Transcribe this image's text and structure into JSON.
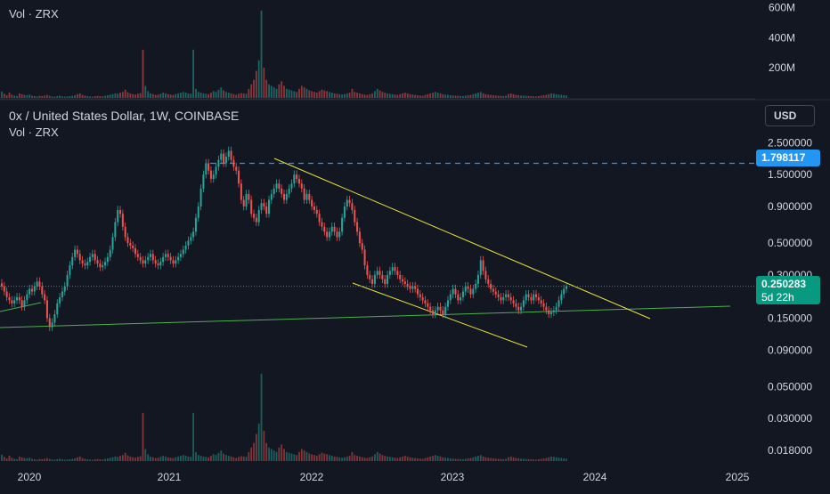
{
  "header": {
    "top_volume_label": "Vol · ZRX",
    "symbol_title": "0x / United States Dollar, 1W, COINBASE",
    "volume_label": "Vol · ZRX",
    "currency": "USD"
  },
  "price_tags": {
    "alert": {
      "value": "1.798117",
      "color": "#2196f3"
    },
    "last": {
      "value": "0.250283",
      "countdown": "5d 22h",
      "color": "#089981"
    }
  },
  "chart_data": [
    {
      "type": "bar",
      "title": "Vol · ZRX",
      "y_ticks": [
        "600M",
        "400M",
        "200M"
      ],
      "ylim": [
        0,
        650000000
      ],
      "note_values": "weekly volume bars, values estimated from pixel heights",
      "volume": [
        42,
        28,
        18,
        35,
        22,
        15,
        12,
        30,
        25,
        20,
        18,
        22,
        15,
        12,
        10,
        14,
        12,
        16,
        20,
        14,
        10,
        8,
        12,
        15,
        11,
        9,
        10,
        12,
        14,
        18,
        25,
        30,
        20,
        15,
        12,
        10,
        8,
        12,
        14,
        12,
        10,
        15,
        18,
        22,
        25,
        30,
        28,
        35,
        40,
        55,
        38,
        30,
        25,
        22,
        28,
        32,
        320,
        80,
        45,
        30,
        25,
        20,
        22,
        28,
        35,
        30,
        25,
        22,
        20,
        25,
        30,
        35,
        40,
        35,
        30,
        28,
        320,
        60,
        40,
        35,
        30,
        28,
        25,
        35,
        45,
        40,
        55,
        70,
        50,
        40,
        35,
        30,
        25,
        20,
        28,
        32,
        30,
        28,
        60,
        90,
        120,
        180,
        250,
        580,
        200,
        120,
        90,
        80,
        70,
        60,
        90,
        110,
        80,
        60,
        55,
        50,
        45,
        40,
        60,
        80,
        70,
        60,
        50,
        45,
        40,
        35,
        45,
        55,
        50,
        45,
        40,
        35,
        30,
        28,
        25,
        22,
        25,
        30,
        35,
        60,
        40,
        35,
        30,
        25,
        22,
        20,
        25,
        30,
        45,
        60,
        50,
        40,
        35,
        30,
        28,
        25,
        22,
        20,
        25,
        30,
        35,
        30,
        25,
        22,
        20,
        18,
        16,
        15,
        20,
        25,
        30,
        35,
        40,
        35,
        30,
        25,
        22,
        20,
        18,
        16,
        15,
        14,
        13,
        12,
        15,
        18,
        20,
        25,
        30,
        35,
        40,
        30,
        25,
        22,
        20,
        18,
        16,
        15,
        14,
        13,
        15,
        25,
        30,
        25,
        20,
        18,
        16,
        15,
        14,
        13,
        12,
        11,
        10,
        12,
        15,
        18,
        20,
        25,
        30,
        28,
        25,
        22,
        20,
        18,
        16,
        15,
        14,
        13,
        12,
        11,
        10,
        12,
        14,
        16,
        18,
        20,
        22,
        25
      ]
    },
    {
      "type": "candlestick",
      "title": "0x / United States Dollar, 1W, COINBASE",
      "scale": "log",
      "x_ticks": [
        "2020",
        "2021",
        "2022",
        "2023",
        "2024",
        "2025"
      ],
      "y_ticks": [
        "2.500000",
        "1.500000",
        "0.900000",
        "0.500000",
        "0.300000",
        "0.150000",
        "0.090000",
        "0.050000",
        "0.030000",
        "0.018000"
      ],
      "ylim": [
        0.016,
        3.2
      ],
      "last_price": 0.250283,
      "alert_level": 1.798117,
      "note_values": "weekly closes estimated from the chart",
      "closes": [
        0.25,
        0.23,
        0.21,
        0.2,
        0.19,
        0.2,
        0.21,
        0.2,
        0.18,
        0.2,
        0.22,
        0.24,
        0.23,
        0.25,
        0.27,
        0.25,
        0.22,
        0.2,
        0.15,
        0.13,
        0.14,
        0.16,
        0.19,
        0.21,
        0.23,
        0.25,
        0.3,
        0.35,
        0.4,
        0.45,
        0.42,
        0.38,
        0.36,
        0.35,
        0.37,
        0.4,
        0.42,
        0.38,
        0.36,
        0.34,
        0.35,
        0.37,
        0.4,
        0.45,
        0.55,
        0.7,
        0.85,
        0.8,
        0.65,
        0.55,
        0.5,
        0.48,
        0.46,
        0.42,
        0.4,
        0.38,
        0.36,
        0.38,
        0.4,
        0.42,
        0.38,
        0.36,
        0.35,
        0.37,
        0.4,
        0.42,
        0.4,
        0.38,
        0.36,
        0.38,
        0.4,
        0.42,
        0.45,
        0.48,
        0.52,
        0.55,
        0.6,
        0.75,
        0.9,
        1.2,
        1.5,
        1.8,
        1.6,
        1.4,
        1.5,
        1.7,
        1.9,
        2.1,
        1.8,
        2.0,
        2.2,
        1.9,
        1.7,
        1.6,
        1.3,
        1.0,
        0.9,
        1.1,
        1.0,
        0.8,
        0.75,
        0.7,
        0.85,
        0.95,
        0.9,
        0.8,
        1.0,
        1.1,
        1.2,
        1.3,
        1.2,
        1.1,
        1.0,
        1.1,
        1.2,
        1.3,
        1.5,
        1.4,
        1.3,
        1.2,
        1.0,
        1.1,
        1.0,
        0.9,
        0.85,
        0.8,
        0.7,
        0.65,
        0.6,
        0.55,
        0.6,
        0.65,
        0.6,
        0.55,
        0.6,
        0.75,
        0.9,
        1.0,
        0.95,
        0.85,
        0.7,
        0.6,
        0.5,
        0.45,
        0.35,
        0.3,
        0.28,
        0.26,
        0.3,
        0.32,
        0.3,
        0.28,
        0.26,
        0.3,
        0.32,
        0.34,
        0.32,
        0.3,
        0.28,
        0.27,
        0.26,
        0.25,
        0.24,
        0.25,
        0.24,
        0.22,
        0.21,
        0.2,
        0.19,
        0.18,
        0.17,
        0.16,
        0.17,
        0.18,
        0.17,
        0.16,
        0.18,
        0.2,
        0.22,
        0.24,
        0.22,
        0.2,
        0.21,
        0.23,
        0.25,
        0.24,
        0.22,
        0.24,
        0.26,
        0.3,
        0.38,
        0.32,
        0.28,
        0.26,
        0.24,
        0.23,
        0.22,
        0.21,
        0.2,
        0.21,
        0.22,
        0.21,
        0.2,
        0.19,
        0.18,
        0.17,
        0.18,
        0.2,
        0.22,
        0.21,
        0.2,
        0.22,
        0.21,
        0.2,
        0.19,
        0.18,
        0.17,
        0.16,
        0.165,
        0.17,
        0.18,
        0.2,
        0.22,
        0.24,
        0.25
      ]
    },
    {
      "type": "bar",
      "title": "Vol · ZRX",
      "note_values": "lower volume pane, relative heights",
      "volume_ref": "same as top pane"
    }
  ]
}
